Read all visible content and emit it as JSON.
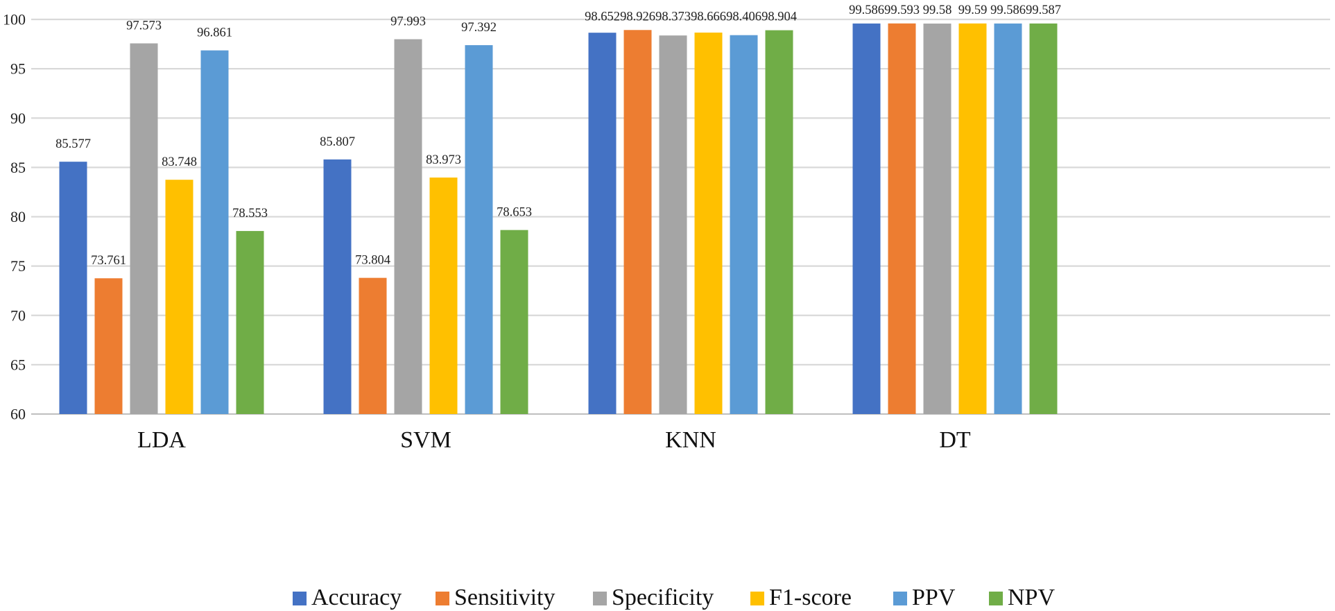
{
  "chart_data": {
    "type": "bar",
    "title": "",
    "xlabel": "",
    "ylabel": "",
    "ylim": [
      60,
      100
    ],
    "yticks": [
      60,
      65,
      70,
      75,
      80,
      85,
      90,
      95,
      100
    ],
    "grid": true,
    "legend_position": "bottom",
    "categories": [
      "LDA",
      "SVM",
      "KNN",
      "DT"
    ],
    "series": [
      {
        "name": "Accuracy",
        "color": "#4472C4",
        "values": [
          85.577,
          85.807,
          98.652,
          99.586
        ],
        "labels": [
          "85.577",
          "85.807",
          "98.652",
          "99.586"
        ]
      },
      {
        "name": "Sensitivity",
        "color": "#ED7D31",
        "values": [
          73.761,
          73.804,
          98.926,
          99.593
        ],
        "labels": [
          "73.761",
          "73.804",
          "98.926",
          "99.593"
        ]
      },
      {
        "name": "Specificity",
        "color": "#A5A5A5",
        "values": [
          97.573,
          97.993,
          98.373,
          99.58
        ],
        "labels": [
          "97.573",
          "97.993",
          "98.373",
          "99.58"
        ]
      },
      {
        "name": "F1-score",
        "color": "#FFC000",
        "values": [
          83.748,
          83.973,
          98.666,
          99.59
        ],
        "labels": [
          "83.748",
          "83.973",
          "98.666",
          "99.59"
        ]
      },
      {
        "name": "PPV",
        "color": "#5B9BD5",
        "values": [
          96.861,
          97.392,
          98.406,
          99.586
        ],
        "labels": [
          "96.861",
          "97.392",
          "98.406",
          "99.586"
        ]
      },
      {
        "name": "NPV",
        "color": "#70AD47",
        "values": [
          78.553,
          78.653,
          98.904,
          99.587
        ],
        "labels": [
          "78.553",
          "78.653",
          "98.904",
          "99.587"
        ]
      }
    ]
  }
}
